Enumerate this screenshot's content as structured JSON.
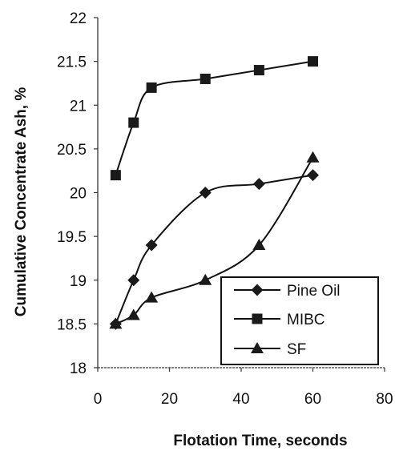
{
  "chart_data": {
    "type": "line",
    "xlabel": "Flotation Time, seconds",
    "ylabel": "Cumulative Concentrate Ash, %",
    "xlim": [
      0,
      80
    ],
    "ylim": [
      18,
      22
    ],
    "x_ticks": [
      0,
      20,
      40,
      60,
      80
    ],
    "y_ticks": [
      18,
      18.5,
      19,
      19.5,
      20,
      20.5,
      21,
      21.5,
      22
    ],
    "x_tick_labels": [
      "0",
      "20",
      "40",
      "60",
      "80"
    ],
    "y_tick_labels": [
      "18",
      "18.5",
      "19",
      "19.5",
      "20",
      "20.5",
      "21",
      "21.5",
      "22"
    ],
    "grid": false,
    "legend_position": "bottom-right",
    "series": [
      {
        "name": "Pine Oil",
        "marker": "diamond",
        "x": [
          5,
          10,
          15,
          30,
          45,
          60
        ],
        "y": [
          18.5,
          19.0,
          19.4,
          20.0,
          20.1,
          20.2
        ]
      },
      {
        "name": "MIBC",
        "marker": "square",
        "x": [
          5,
          10,
          15,
          30,
          45,
          60
        ],
        "y": [
          20.2,
          20.8,
          21.2,
          21.3,
          21.4,
          21.5
        ]
      },
      {
        "name": "SF",
        "marker": "triangle",
        "x": [
          5,
          10,
          15,
          30,
          45,
          60
        ],
        "y": [
          18.5,
          18.6,
          18.8,
          19.0,
          19.4,
          20.4
        ]
      }
    ],
    "colors": {
      "line": "#111111",
      "marker": "#1a1a1a",
      "axis": "#333333"
    }
  }
}
